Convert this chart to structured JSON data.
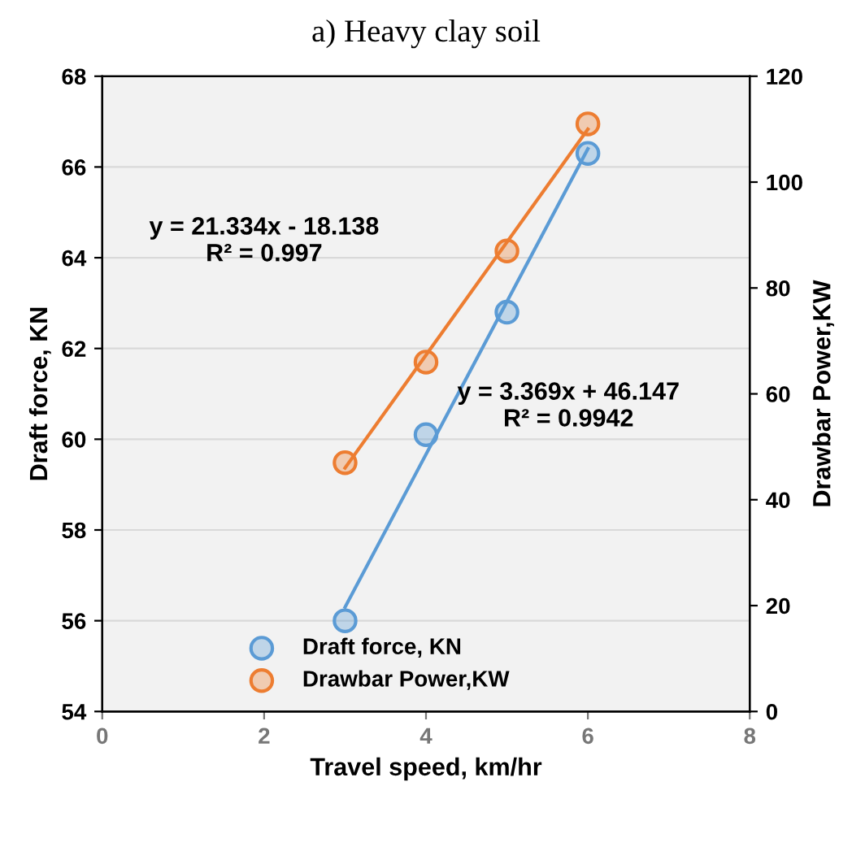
{
  "chart_data": {
    "type": "scatter",
    "title": "a) Heavy clay soil",
    "xlabel": "Travel speed, km/hr",
    "ylabel": "Draft force, KN",
    "y2label": "Drawbar Power,KW",
    "xlim": [
      0,
      8
    ],
    "xticks": [
      0,
      2,
      4,
      6,
      8
    ],
    "ylim": [
      54,
      68
    ],
    "yticks": [
      54,
      56,
      58,
      60,
      62,
      64,
      66,
      68
    ],
    "y2lim": [
      0,
      120
    ],
    "y2ticks": [
      0,
      20,
      40,
      60,
      80,
      100,
      120
    ],
    "grid": "y",
    "legend": "bottom left",
    "marker": "circle",
    "series": [
      {
        "name": "Draft force, KN",
        "color": "#5b9bd5",
        "x": [
          3,
          4,
          5,
          6
        ],
        "values": [
          56.0,
          60.1,
          62.8,
          66.3
        ]
      },
      {
        "name": "Drawbar Power,KW",
        "color": "#ed7d31",
        "axis": "y2",
        "x": [
          3,
          4,
          5,
          6
        ],
        "values": [
          47,
          66,
          87,
          111
        ]
      },
      {
        "type": "line",
        "marker": "none",
        "color": "#5b9bd5",
        "x": [
          3,
          6
        ],
        "values": [
          56.3,
          66.4
        ]
      },
      {
        "type": "line",
        "marker": "none",
        "color": "#ed7d31",
        "axis": "y2",
        "x": [
          3,
          6
        ],
        "values": [
          46,
          110
        ]
      }
    ],
    "annotations": [
      "y = 21.334x - 18.138\nR² = 0.997",
      "y = 3.369x + 46.147\nR² = 0.9942"
    ]
  }
}
